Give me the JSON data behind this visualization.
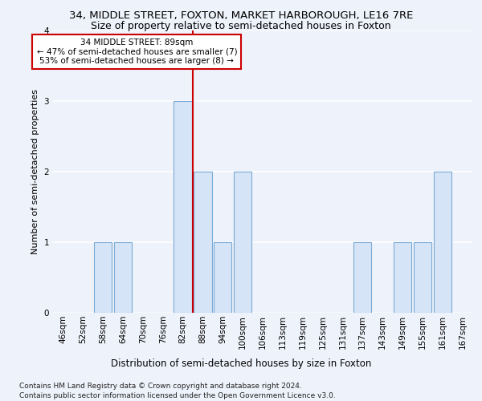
{
  "title_line1": "34, MIDDLE STREET, FOXTON, MARKET HARBOROUGH, LE16 7RE",
  "title_line2": "Size of property relative to semi-detached houses in Foxton",
  "xlabel": "Distribution of semi-detached houses by size in Foxton",
  "ylabel": "Number of semi-detached properties",
  "categories": [
    "46sqm",
    "52sqm",
    "58sqm",
    "64sqm",
    "70sqm",
    "76sqm",
    "82sqm",
    "88sqm",
    "94sqm",
    "100sqm",
    "106sqm",
    "113sqm",
    "119sqm",
    "125sqm",
    "131sqm",
    "137sqm",
    "143sqm",
    "149sqm",
    "155sqm",
    "161sqm",
    "167sqm"
  ],
  "values": [
    0,
    0,
    1,
    1,
    0,
    0,
    3,
    2,
    1,
    2,
    0,
    0,
    0,
    0,
    0,
    1,
    0,
    1,
    1,
    2,
    0
  ],
  "bar_color": "#d6e4f7",
  "bar_edge_color": "#7aaad4",
  "subject_index": 7,
  "subject_label": "34 MIDDLE STREET: 89sqm",
  "annotation_line1": "← 47% of semi-detached houses are smaller (7)",
  "annotation_line2": "53% of semi-detached houses are larger (8) →",
  "vline_color": "#cc0000",
  "annotation_border_color": "#cc0000",
  "ylim": [
    0,
    4
  ],
  "yticks": [
    0,
    1,
    2,
    3,
    4
  ],
  "footnote_line1": "Contains HM Land Registry data © Crown copyright and database right 2024.",
  "footnote_line2": "Contains public sector information licensed under the Open Government Licence v3.0.",
  "background_color": "#eef2fa",
  "plot_background": "#eef2fa",
  "grid_color": "#ffffff",
  "title_fontsize": 9.5,
  "subtitle_fontsize": 9,
  "ylabel_fontsize": 8,
  "xlabel_fontsize": 8.5,
  "tick_fontsize": 7.5,
  "annotation_fontsize": 7.5,
  "footnote_fontsize": 6.5
}
